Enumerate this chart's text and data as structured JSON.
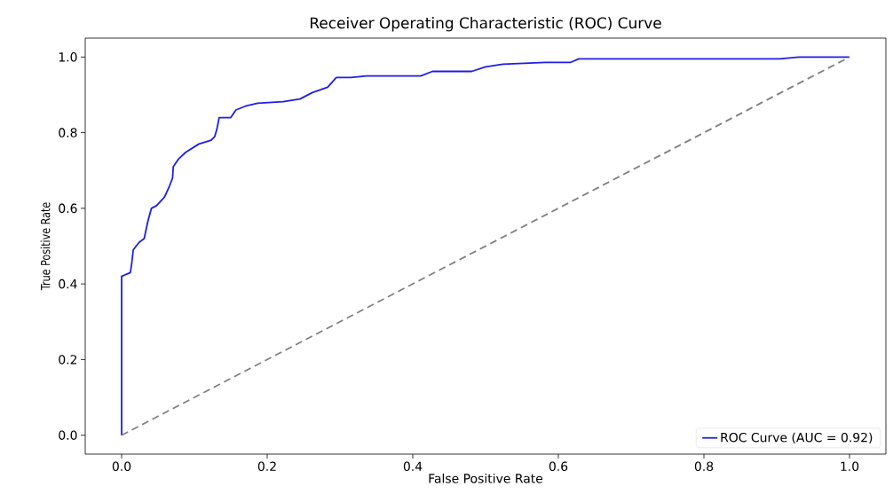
{
  "chart_data": {
    "type": "line",
    "title": "Receiver Operating Characteristic (ROC) Curve",
    "xlabel": "False Positive Rate",
    "ylabel": "True Positive Rate",
    "xlim": [
      -0.05,
      1.05
    ],
    "ylim": [
      -0.05,
      1.05
    ],
    "xticks": [
      {
        "value": 0,
        "label": "0.0"
      },
      0.2,
      0.4,
      0.6,
      0.8,
      {
        "value": 1,
        "label": "1.0"
      }
    ],
    "yticks": [
      {
        "value": 0,
        "label": "0.0"
      },
      0.2,
      0.4,
      0.6,
      0.8,
      {
        "value": 1,
        "label": "1.0"
      }
    ],
    "legend": "bottom right",
    "grid": false,
    "series": [
      {
        "name": "ROC Curve (AUC = 0.92)",
        "color": "#1f1fe6",
        "line_style": "solid",
        "x": [
          0,
          0,
          0.007,
          0.012,
          0.014,
          0.016,
          0.024,
          0.031,
          0.036,
          0.041,
          0.048,
          0.059,
          0.066,
          0.07,
          0.071,
          0.078,
          0.088,
          0.106,
          0.123,
          0.128,
          0.131,
          0.134,
          0.15,
          0.157,
          0.17,
          0.187,
          0.222,
          0.245,
          0.262,
          0.283,
          0.295,
          0.315,
          0.336,
          0.411,
          0.427,
          0.481,
          0.5,
          0.524,
          0.582,
          0.617,
          0.628,
          0.904,
          0.93,
          1.0
        ],
        "values": [
          0,
          0.42,
          0.426,
          0.43,
          0.456,
          0.49,
          0.51,
          0.52,
          0.565,
          0.6,
          0.607,
          0.63,
          0.66,
          0.68,
          0.71,
          0.73,
          0.748,
          0.77,
          0.78,
          0.79,
          0.81,
          0.84,
          0.84,
          0.86,
          0.87,
          0.878,
          0.882,
          0.889,
          0.906,
          0.92,
          0.946,
          0.946,
          0.95,
          0.95,
          0.962,
          0.962,
          0.974,
          0.981,
          0.986,
          0.986,
          0.995,
          0.995,
          1.0,
          1.0
        ]
      },
      {
        "color": "#808080",
        "line_style": "dashed",
        "x": [
          0,
          1
        ],
        "values": [
          0,
          1
        ]
      }
    ]
  }
}
